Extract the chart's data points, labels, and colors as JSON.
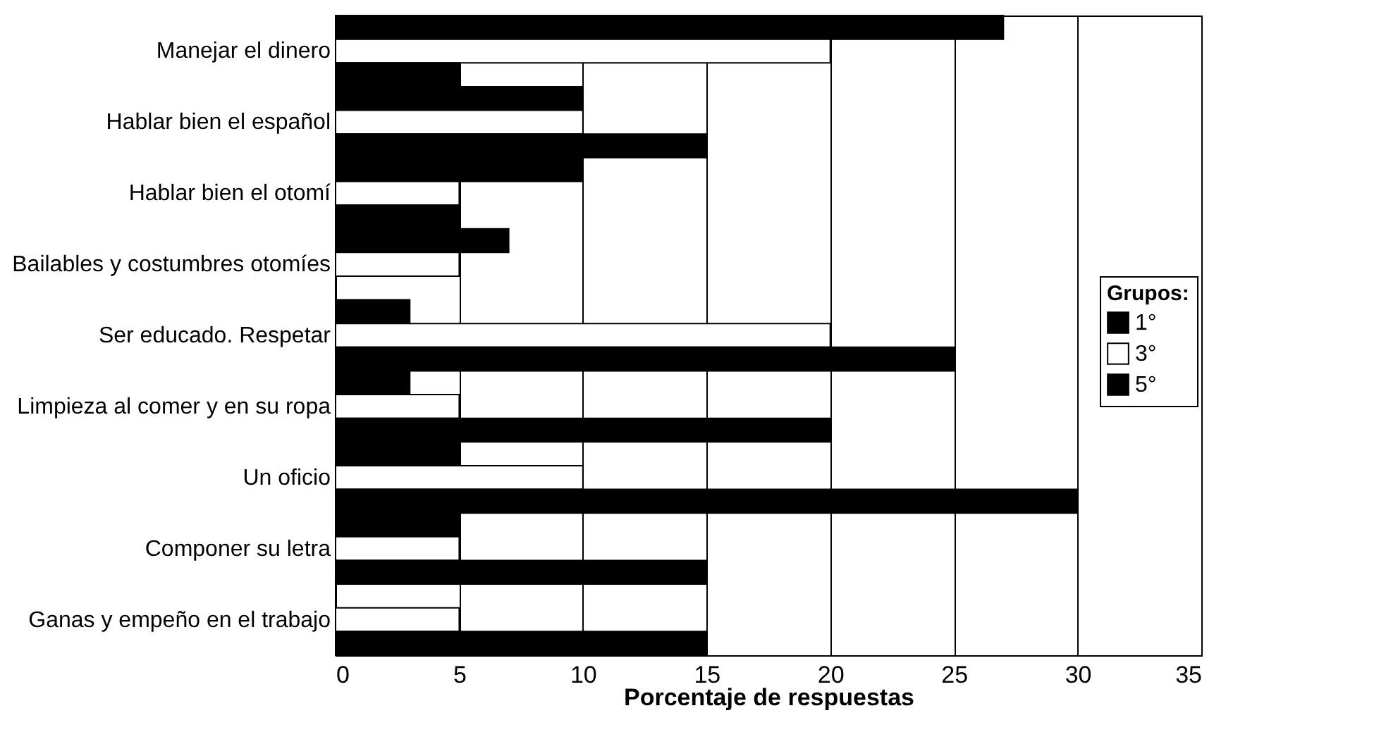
{
  "chart_data": {
    "type": "bar",
    "orientation": "horizontal",
    "xlabel": "Porcentaje de respuestas",
    "legend_title": "Grupos:",
    "legend": "right",
    "grid": "x",
    "categories": [
      "Manejar el dinero",
      "Hablar bien el español",
      "Hablar bien el otomí",
      "Bailables y costumbres otomíes",
      "Ser educado. Respetar",
      "Limpieza al comer y en su ropa",
      "Un oficio",
      "Componer su letra",
      "Ganas y empeño en el trabajo"
    ],
    "xlim": [
      0,
      35
    ],
    "xticks": [
      0,
      5,
      10,
      15,
      20,
      25,
      30,
      35
    ],
    "series": [
      {
        "name": "1°",
        "color": "#000000",
        "values": [
          27,
          10,
          10,
          7,
          3,
          3,
          5,
          5,
          0
        ]
      },
      {
        "name": "3°",
        "color": "#ffffff",
        "values": [
          20,
          10,
          5,
          5,
          20,
          5,
          10,
          5,
          5
        ]
      },
      {
        "name": "5°",
        "color": "#000000",
        "values": [
          5,
          15,
          5,
          0,
          25,
          20,
          30,
          15,
          15
        ]
      }
    ]
  }
}
